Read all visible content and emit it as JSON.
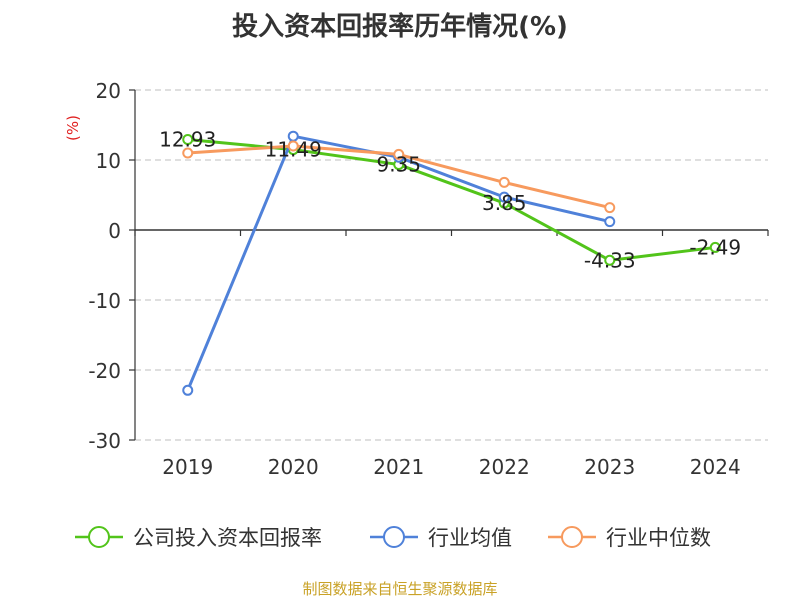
{
  "chart_data": {
    "type": "line",
    "title": "投入资本回报率历年情况(%)",
    "ylabel": "(%)",
    "xlabel": "",
    "categories": [
      "2019",
      "2020",
      "2021",
      "2022",
      "2023",
      "2024"
    ],
    "ylim": [
      -30,
      20
    ],
    "yticks": [
      20,
      10,
      0,
      -10,
      -20,
      -30
    ],
    "grid": true,
    "legend_position": "bottom",
    "series": [
      {
        "name": "公司投入资本回报率",
        "color": "#52c41a",
        "values": [
          12.93,
          11.49,
          9.35,
          3.85,
          -4.33,
          -2.49
        ],
        "labels": [
          "12.93",
          "11.49",
          "9.35",
          "3.85",
          "-4.33",
          "-2.49"
        ]
      },
      {
        "name": "行业均值",
        "color": "#4f81d9",
        "values": [
          -22.9,
          13.4,
          10.4,
          4.7,
          1.2,
          null
        ]
      },
      {
        "name": "行业中位数",
        "color": "#f79a5e",
        "values": [
          11.0,
          12.0,
          10.8,
          6.8,
          3.2,
          null
        ]
      }
    ]
  },
  "source_note": "制图数据来自恒生聚源数据库"
}
